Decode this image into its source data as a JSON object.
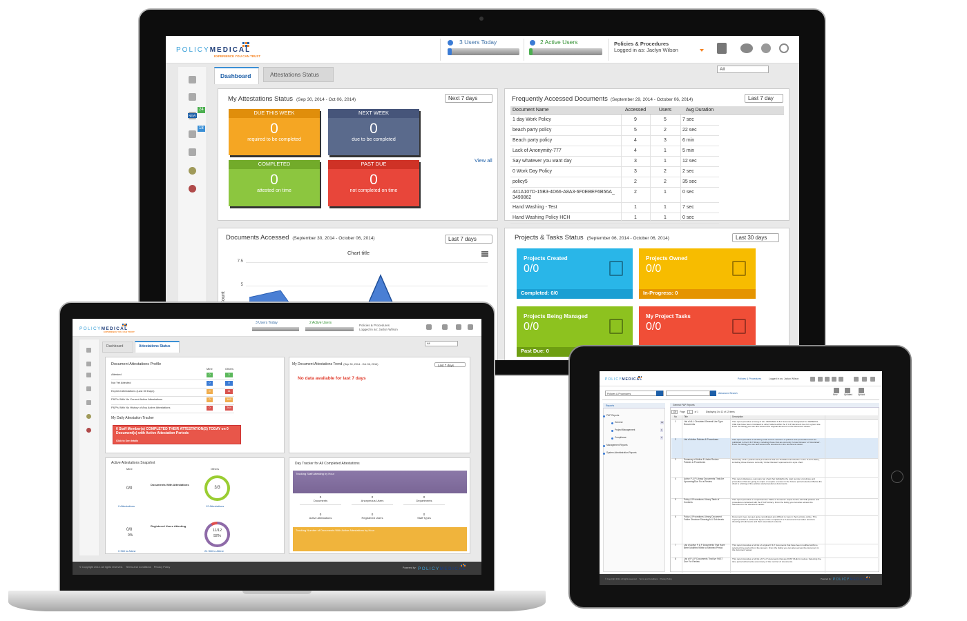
{
  "monitor": {
    "header": {
      "logo_a": "POLICY",
      "logo_b": "MEDICAL",
      "tagline": "EXPERIENCE YOU CAN TRUST",
      "users_today": "3 Users Today",
      "active_users": "2 Active Users",
      "module": "Policies & Procedures",
      "logged_in": "Logged in as: Jaclyn Wilson"
    },
    "sidebar": {
      "badge_new": "NEW",
      "badges": [
        "24",
        "18"
      ]
    },
    "tabs": [
      "Dashboard",
      "Attestations Status"
    ],
    "filter": "All",
    "attestations": {
      "title": "My Attestations Status",
      "range": "(Sep 30, 2014 - Oct 06, 2014)",
      "period": "Next 7 days",
      "view_all": "View all",
      "tiles": [
        {
          "label": "DUE THIS WEEK",
          "count": 0,
          "note": "required to be completed"
        },
        {
          "label": "NEXT WEEK",
          "count": 0,
          "note": "due to be completed"
        },
        {
          "label": "COMPLETED",
          "count": 0,
          "note": "attested on time"
        },
        {
          "label": "PAST DUE",
          "count": 0,
          "note": "not completed on time"
        }
      ]
    },
    "frequent": {
      "title": "Frequently Accessed Documents",
      "range": "(September 29, 2014 - October 06, 2014)",
      "period": "Last 7 day",
      "columns": [
        "Document Name",
        "Accessed",
        "Users",
        "Avg Duration"
      ],
      "rows": [
        [
          "1 day Work Policy",
          9,
          5,
          "7 sec"
        ],
        [
          "beach party policy",
          5,
          2,
          "22 sec"
        ],
        [
          "Beach party policy",
          4,
          3,
          "6 min"
        ],
        [
          "Lack of Anonymity-777",
          4,
          1,
          "5 min"
        ],
        [
          "Say whatever you want day",
          3,
          1,
          "12 sec"
        ],
        [
          "0 Work Day Policy",
          3,
          2,
          "2 sec"
        ],
        [
          "policy5",
          2,
          2,
          "35 sec"
        ],
        [
          "441A107D-15B3-4D66-A8A3-6F0EBEF6B56A_3490862",
          2,
          1,
          "0 sec"
        ],
        [
          "Hand Washing - Test",
          1,
          1,
          "7 sec"
        ],
        [
          "Hand Washing Policy HCH",
          1,
          1,
          "0 sec"
        ]
      ]
    },
    "documents_accessed": {
      "title": "Documents Accessed",
      "range": "(September 30, 2014 - October 06, 2014)",
      "period": "Last 7 days",
      "chart_title": "Chart title",
      "yticks": [
        "7.5",
        "5"
      ],
      "y_label": "Count"
    },
    "projects": {
      "title": "Projects & Tasks Status",
      "range": "(September 06, 2014 - October 06, 2014)",
      "period": "Last 30 days",
      "tiles": [
        {
          "label": "Projects Created",
          "value": "0/0",
          "footer": "Completed: 0/0"
        },
        {
          "label": "Projects Owned",
          "value": "0/0",
          "footer": "In-Progress: 0"
        },
        {
          "label": "Projects Being Managed",
          "value": "0/0",
          "footer": "Past Due: 0"
        },
        {
          "label": "My Project Tasks",
          "value": "0/0"
        }
      ]
    }
  },
  "laptop": {
    "header": {
      "logo_a": "POLICY",
      "logo_b": "MEDICAL",
      "tagline": "EXPERIENCE YOU CAN TRUST",
      "users_today": "3 Users Today",
      "active_users": "2 Active Users",
      "module": "Policies & Procedures",
      "logged_in": "Logged in as: Jaclyn Wilson"
    },
    "tabs": [
      "Dashboard",
      "Attestations Status"
    ],
    "filter": "All",
    "profile": {
      "title": "Document Attestations Profile",
      "columns": [
        "Mine",
        "Others"
      ],
      "rows": [
        {
          "label": "Attested",
          "mine": 0,
          "others": 3
        },
        {
          "label": "Not Yet Attested",
          "mine": 0,
          "others": 0
        },
        {
          "label": "Expired Attestations (Last 30 Days)",
          "mine": 0,
          "others": 11
        },
        {
          "label": "P&P's With No Current Active Attestations",
          "mine": 0,
          "others": 163
        },
        {
          "label": "P&P's With No History of Any Active Attestations",
          "mine": 0,
          "others": 264
        }
      ],
      "tracker_title": "My Daily Attestation Tracker",
      "tracker_message": "0 Staff Member(s) COMPLETED THEIR ATTESTATION(S) TODAY on 0 Document(s) with Active Attestation Periods",
      "tracker_link": "Click to See details"
    },
    "trend": {
      "title": "My Document Attestations Trend",
      "range": "(Sep 30, 2014 - Oct 06, 2014)",
      "period": "Last 7 days",
      "message": "No data available for last 7 days"
    },
    "snapshot": {
      "title": "Active Attestations Snapshot",
      "mine": "Mine",
      "others": "Others",
      "groups": [
        {
          "label": "Documents With Attestations",
          "mine_ratio": "0/0",
          "mine_note": "0 Attestations",
          "others_ratio": "3/3",
          "others_note": "12 Attestations"
        },
        {
          "label": "Registered Users Attesting",
          "mine_ratio": "0/0",
          "mine_pct": 0,
          "mine_pct_label": "0%",
          "mine_note": "0 Still to Attest",
          "others_ratio": "11/12",
          "others_pct": 92,
          "others_pct_label": "92%",
          "others_note": "24 Still to Attest"
        }
      ]
    },
    "tracker": {
      "title": "Day Tracker for All Completed Attestations",
      "bar1": "Tracking Staff Attesting by Hour",
      "stats": [
        {
          "value": 0,
          "label": "Documents"
        },
        {
          "value": 0,
          "label": "Anonymous Users"
        },
        {
          "value": 0,
          "label": "Departments"
        },
        {
          "value": 0,
          "label": "Active Attestations"
        },
        {
          "value": 0,
          "label": "Registered Users"
        },
        {
          "value": 0,
          "label": "Staff Types"
        }
      ],
      "bar2": "Tracking Number of Documents With Active Attestations by Hour"
    },
    "footer": {
      "copyright": "© Copyright 2014. All rights reserved.",
      "terms": "Terms and Conditions",
      "privacy": "Privacy Policy",
      "powered": "Powered by:"
    }
  },
  "tablet": {
    "header": {
      "logo_a": "POLICY",
      "logo_b": "MEDICAL",
      "module": "Policies & Procedures",
      "logged_in": "Logged in as: Jaclyn Wilson"
    },
    "search": "Policies & Procedures",
    "advanced": "Advanced Search",
    "buttons": [
      "New",
      "Updated",
      "Upload"
    ],
    "nav": {
      "title": "Reports",
      "items": [
        {
          "label": "P&P Reports"
        },
        {
          "label": "General",
          "badge": 12
        },
        {
          "label": "Project Management",
          "badge": 1
        },
        {
          "label": "Compliance",
          "badge": 2
        },
        {
          "label": "Management Reports"
        },
        {
          "label": "System Administration Reports"
        }
      ]
    },
    "reports": {
      "title": "General P&P Reports",
      "page_size": 100,
      "page_label": "Page",
      "page": 1,
      "of": "of 1",
      "displaying": "Displaying 1 to 12 of 12 items",
      "columns": [
        "No",
        "Title",
        "Description"
      ],
      "rows": [
        {
          "no": 1,
          "title": "List of ALL Circulated General Use Type Documents",
          "description": "This report provides a listing of ALL ORIGINAL P & P documents designated for GENERAL USE that have been circulated to other folders within the P & P document tree for a given site. From the listing you can also access the original document in the document viewer."
        },
        {
          "no": 2,
          "title": "List of Active Policies & Procedures",
          "description": "This report provides a full listing of all current versions of policies and procedures that are published in the P & P library, including those that are currently 'Under Review' or 'Restricted'. From the listing you can also access the document in the document viewer."
        },
        {
          "no": 3,
          "title": "Summary of Active & Under Review Policies & Procedures",
          "description": "Summary of ALL policies and procedures that are 'Published and Active' in the P & P Library, including those that are currently 'Under Review' represented in a pie chart."
        },
        {
          "no": 4,
          "title": "Active P & P Library Documents That Are Upcoming/Due For a Review",
          "description": "This report displays a summary bar chart that highlights the total number of policies and procedures that are going to expire or require a review in the 'future' period selected. Below the chart is a listing of the policies and procedures documents."
        },
        {
          "no": 5,
          "title": "Policy & Procedures Library Table of Contents",
          "description": "This report provides a comprehensive 'Table of Contents' output for the ACTIVE policies and procedures contained with the P & P Library. From the listing you can also access the document in the document viewer."
        },
        {
          "no": 6,
          "title": "Policy & Procedures Library Document Folder Structure Showing ALL Sub-levels",
          "description": "Document trees can get quite complicated and difficult to view in their entirety online. This report provides a schematic layout of the complete P & P document tree folder structure showing all sub-levels and their associated contents."
        },
        {
          "no": 7,
          "title": "List of Active P & P Documents That Have Been Modified Within a Selected Period",
          "description": "This report provides a full list of original P & P documents that have been modified within a selected time period from the present. From the listing you can also access the document in the document viewer."
        },
        {
          "no": 8,
          "title": "List of P & P Documents That Are PAST Due For Review",
          "description": "This report provides a full list of P & P documents that are PAST DUE for review. Selecting the time period will provide a summary of the number of documents."
        }
      ]
    },
    "footer": {
      "copyright": "© Copyright 2014. All rights reserved.",
      "terms": "Terms and Conditions",
      "privacy": "Privacy Policy",
      "powered": "Powered by:"
    }
  }
}
